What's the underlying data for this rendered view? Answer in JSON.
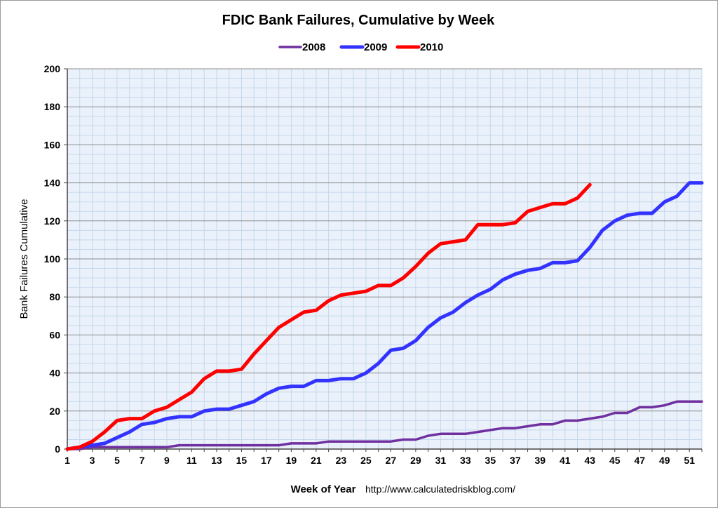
{
  "chart_data": {
    "type": "line",
    "title": "FDIC Bank Failures, Cumulative by Week",
    "xlabel": "Week of Year",
    "ylabel": "Bank Failures Cumulative",
    "source": "http://www.calculatedriskblog.com/",
    "xlim": [
      1,
      52
    ],
    "ylim": [
      0,
      200
    ],
    "y_ticks": [
      0,
      20,
      40,
      60,
      80,
      100,
      120,
      140,
      160,
      180,
      200
    ],
    "x_ticks": [
      1,
      3,
      5,
      7,
      9,
      11,
      13,
      15,
      17,
      19,
      21,
      23,
      25,
      27,
      29,
      31,
      33,
      35,
      37,
      39,
      41,
      43,
      45,
      47,
      49,
      51
    ],
    "grid": true,
    "legend_position": "top",
    "series": [
      {
        "name": "2008",
        "color": "#7030a0",
        "values": [
          0,
          0,
          1,
          1,
          1,
          1,
          1,
          1,
          1,
          2,
          2,
          2,
          2,
          2,
          2,
          2,
          2,
          2,
          3,
          3,
          3,
          4,
          4,
          4,
          4,
          4,
          4,
          5,
          5,
          7,
          8,
          8,
          8,
          9,
          10,
          11,
          11,
          12,
          13,
          13,
          15,
          15,
          16,
          17,
          19,
          19,
          22,
          22,
          23,
          25,
          25,
          25
        ]
      },
      {
        "name": "2009",
        "color": "#3333ff",
        "values": [
          0,
          1,
          2,
          3,
          6,
          9,
          13,
          14,
          16,
          17,
          17,
          20,
          21,
          21,
          23,
          25,
          29,
          32,
          33,
          33,
          36,
          36,
          37,
          37,
          40,
          45,
          52,
          53,
          57,
          64,
          69,
          72,
          77,
          81,
          84,
          89,
          92,
          94,
          95,
          98,
          98,
          99,
          106,
          115,
          120,
          123,
          124,
          124,
          130,
          133,
          140,
          140
        ]
      },
      {
        "name": "2010",
        "color": "#ff0000",
        "values": [
          0,
          1,
          4,
          9,
          15,
          16,
          16,
          20,
          22,
          26,
          30,
          37,
          41,
          41,
          42,
          50,
          57,
          64,
          68,
          72,
          73,
          78,
          81,
          82,
          83,
          86,
          86,
          90,
          96,
          103,
          108,
          109,
          110,
          118,
          118,
          118,
          119,
          125,
          127,
          129,
          129,
          132,
          139
        ]
      }
    ]
  }
}
